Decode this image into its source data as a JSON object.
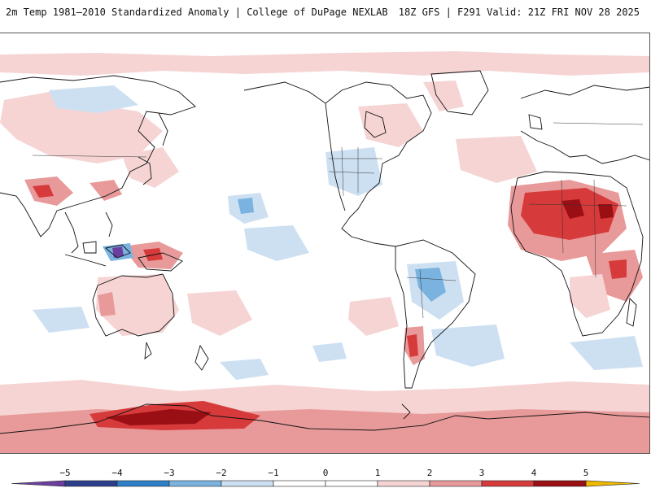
{
  "header": {
    "title_left": "2m Temp 1981–2010 Standardized Anomaly | College of DuPage NEXLAB",
    "title_right": "18Z GFS | F291 Valid: 21Z FRI NOV 28 2025"
  },
  "map": {
    "projection": "equirectangular, Pacific-centered",
    "colors": {
      "ocean_background": "#ffffff",
      "coastline": "#111111",
      "border": "#333333"
    }
  },
  "colorbar": {
    "ticks": [
      "−5",
      "−4",
      "−3",
      "−2",
      "−1",
      "0",
      "1",
      "2",
      "3",
      "4",
      "5"
    ],
    "colors": {
      "extend_low": "#6b3fa0",
      "minus5_minus4": "#2b3f8c",
      "minus4_minus3": "#2f7fc8",
      "minus3_minus2": "#7ab3e0",
      "minus2_minus1": "#cde0f2",
      "minus1_plus1": "#ffffff",
      "plus1_plus2": "#f6d4d4",
      "plus2_plus3": "#e89a9a",
      "plus3_plus4": "#d63a3a",
      "plus4_plus5": "#9a0f14",
      "extend_high": "#f0b800"
    }
  }
}
